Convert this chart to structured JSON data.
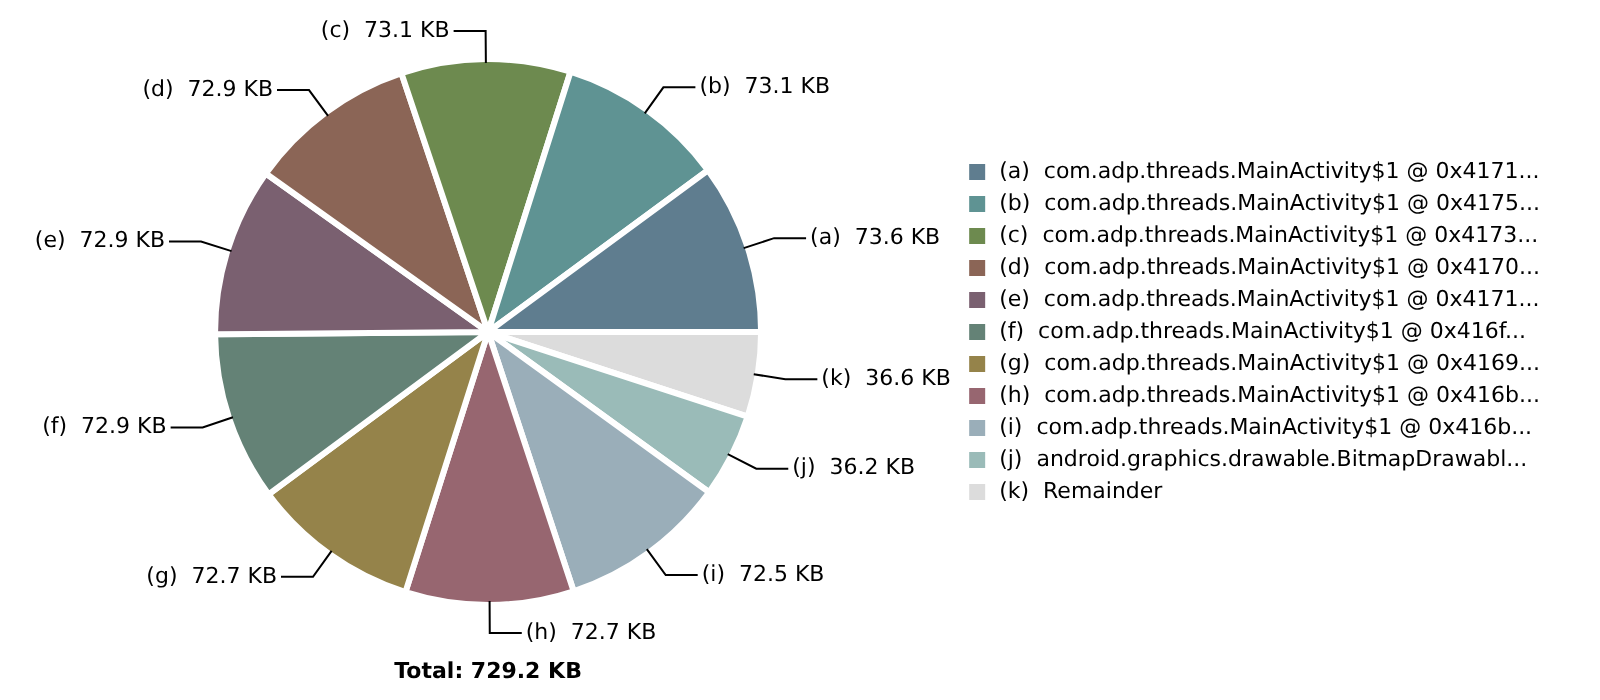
{
  "chart_data": {
    "type": "pie",
    "categories": [
      "(a)  com.adp.threads.MainActivity$1 @ 0x4171...",
      "(b)  com.adp.threads.MainActivity$1 @ 0x4175...",
      "(c)  com.adp.threads.MainActivity$1 @ 0x4173...",
      "(d)  com.adp.threads.MainActivity$1 @ 0x4170...",
      "(e)  com.adp.threads.MainActivity$1 @ 0x4171...",
      "(f)  com.adp.threads.MainActivity$1 @ 0x416f...",
      "(g)  com.adp.threads.MainActivity$1 @ 0x4169...",
      "(h)  com.adp.threads.MainActivity$1 @ 0x416b...",
      "(i)  com.adp.threads.MainActivity$1 @ 0x416b...",
      "(j)  android.graphics.drawable.BitmapDrawabl...",
      "(k)  Remainder"
    ],
    "values": [
      73.6,
      73.1,
      73.1,
      72.9,
      72.9,
      72.9,
      72.7,
      72.7,
      72.5,
      36.2,
      36.6
    ],
    "value_labels": [
      "(a)  73.6 KB",
      "(b)  73.1 KB",
      "(c)  73.1 KB",
      "(d)  72.9 KB",
      "(e)  72.9 KB",
      "(f)  72.9 KB",
      "(g)  72.7 KB",
      "(h)  72.7 KB",
      "(i)  72.5 KB",
      "(j)  36.2 KB",
      "(k)  36.6 KB"
    ],
    "colors": [
      "#5f7d8f",
      "#5f9393",
      "#6d8a4f",
      "#8b6556",
      "#7a6070",
      "#648276",
      "#95834a",
      "#976670",
      "#9aaeb9",
      "#9abbb8",
      "#dcdcdc"
    ],
    "legend": "right",
    "annotations": [
      "Total: 729.2 KB"
    ]
  }
}
